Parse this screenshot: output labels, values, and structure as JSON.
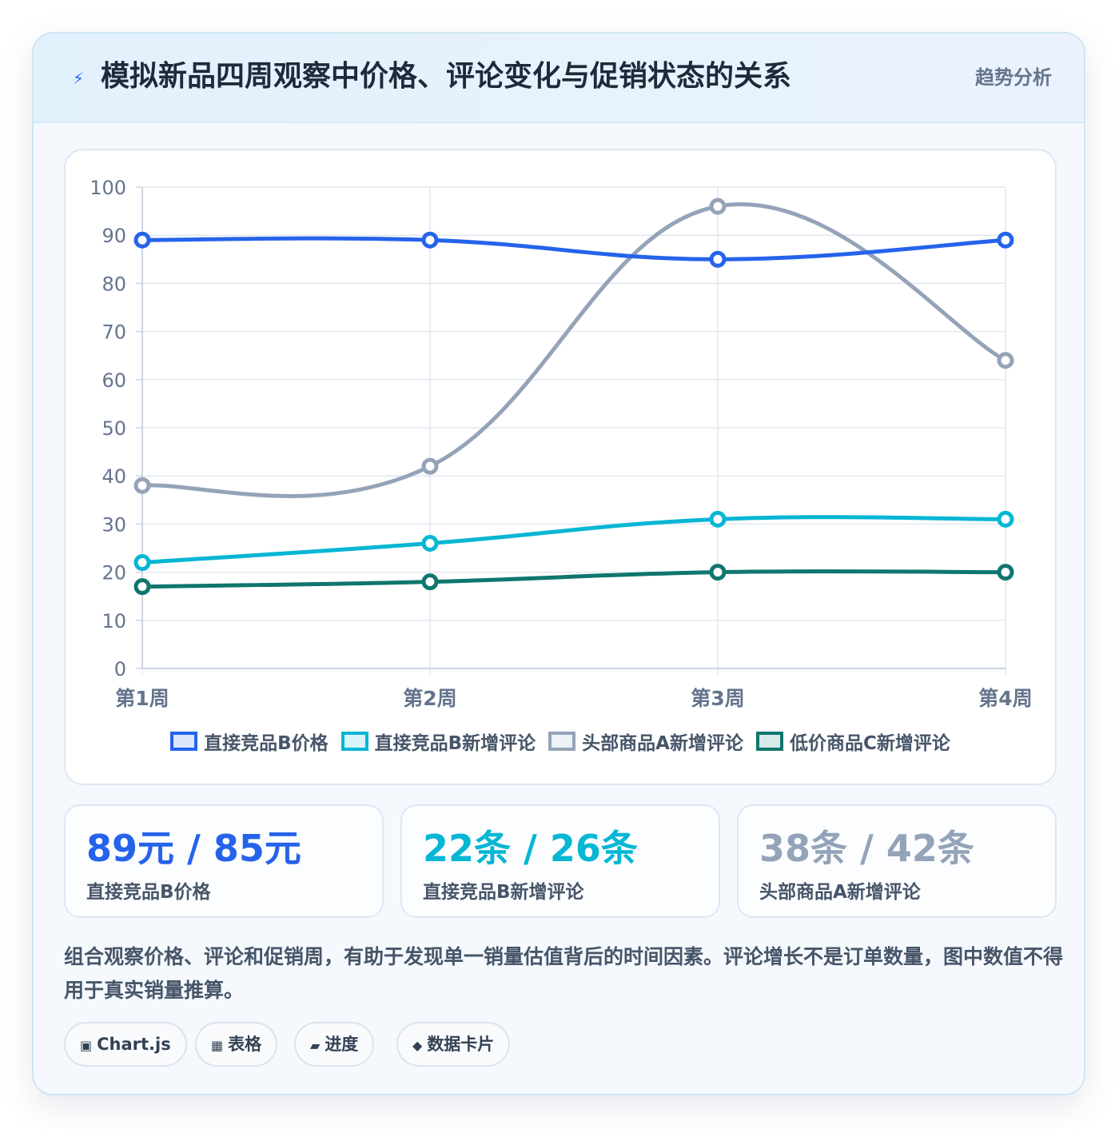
{
  "header": {
    "icon": "lightning-icon",
    "title": "模拟新品四周观察中价格、评论变化与促销状态的关系",
    "tag": "趋势分析"
  },
  "chart_data": {
    "type": "line",
    "categories": [
      "第1周",
      "第2周",
      "第3周",
      "第4周"
    ],
    "ylim": [
      0,
      100
    ],
    "yticks": [
      0,
      10,
      20,
      30,
      40,
      50,
      60,
      70,
      80,
      90,
      100
    ],
    "grid": true,
    "smooth": true,
    "legend_position": "bottom",
    "series": [
      {
        "name": "直接竞品B价格",
        "values": [
          89,
          89,
          85,
          89
        ],
        "color": "#2563eb",
        "fill": "#dbe7fb"
      },
      {
        "name": "直接竞品B新增评论",
        "values": [
          22,
          26,
          31,
          31
        ],
        "color": "#06b6d4",
        "fill": "#d9f4f9"
      },
      {
        "name": "头部商品A新增评论",
        "values": [
          38,
          42,
          96,
          64
        ],
        "color": "#94a3b8",
        "fill": "#eef1f5"
      },
      {
        "name": "低价商品C新增评论",
        "values": [
          17,
          18,
          20,
          20
        ],
        "color": "#0f766e",
        "fill": "#d6ebe8"
      }
    ]
  },
  "stats": [
    {
      "value": "89元 / 85元",
      "label": "直接竞品B价格",
      "color": "#2563eb"
    },
    {
      "value": "22条 / 26条",
      "label": "直接竞品B新增评论",
      "color": "#06b6d4"
    },
    {
      "value": "38条 / 42条",
      "label": "头部商品A新增评论",
      "color": "#94a3b8"
    }
  ],
  "description": "组合观察价格、评论和促销周，有助于发现单一销量估值背后的时间因素。评论增长不是订单数量，图中数值不得用于真实销量推算。",
  "pills": [
    {
      "icon": "▣",
      "icon_name": "chart-icon",
      "label": "Chart.js"
    },
    {
      "icon": "▦",
      "icon_name": "table-icon",
      "label": "表格"
    },
    {
      "icon": "▰",
      "icon_name": "progress-icon",
      "label": "进度"
    },
    {
      "icon": "◆",
      "icon_name": "diamond-icon",
      "label": "数据卡片"
    }
  ]
}
